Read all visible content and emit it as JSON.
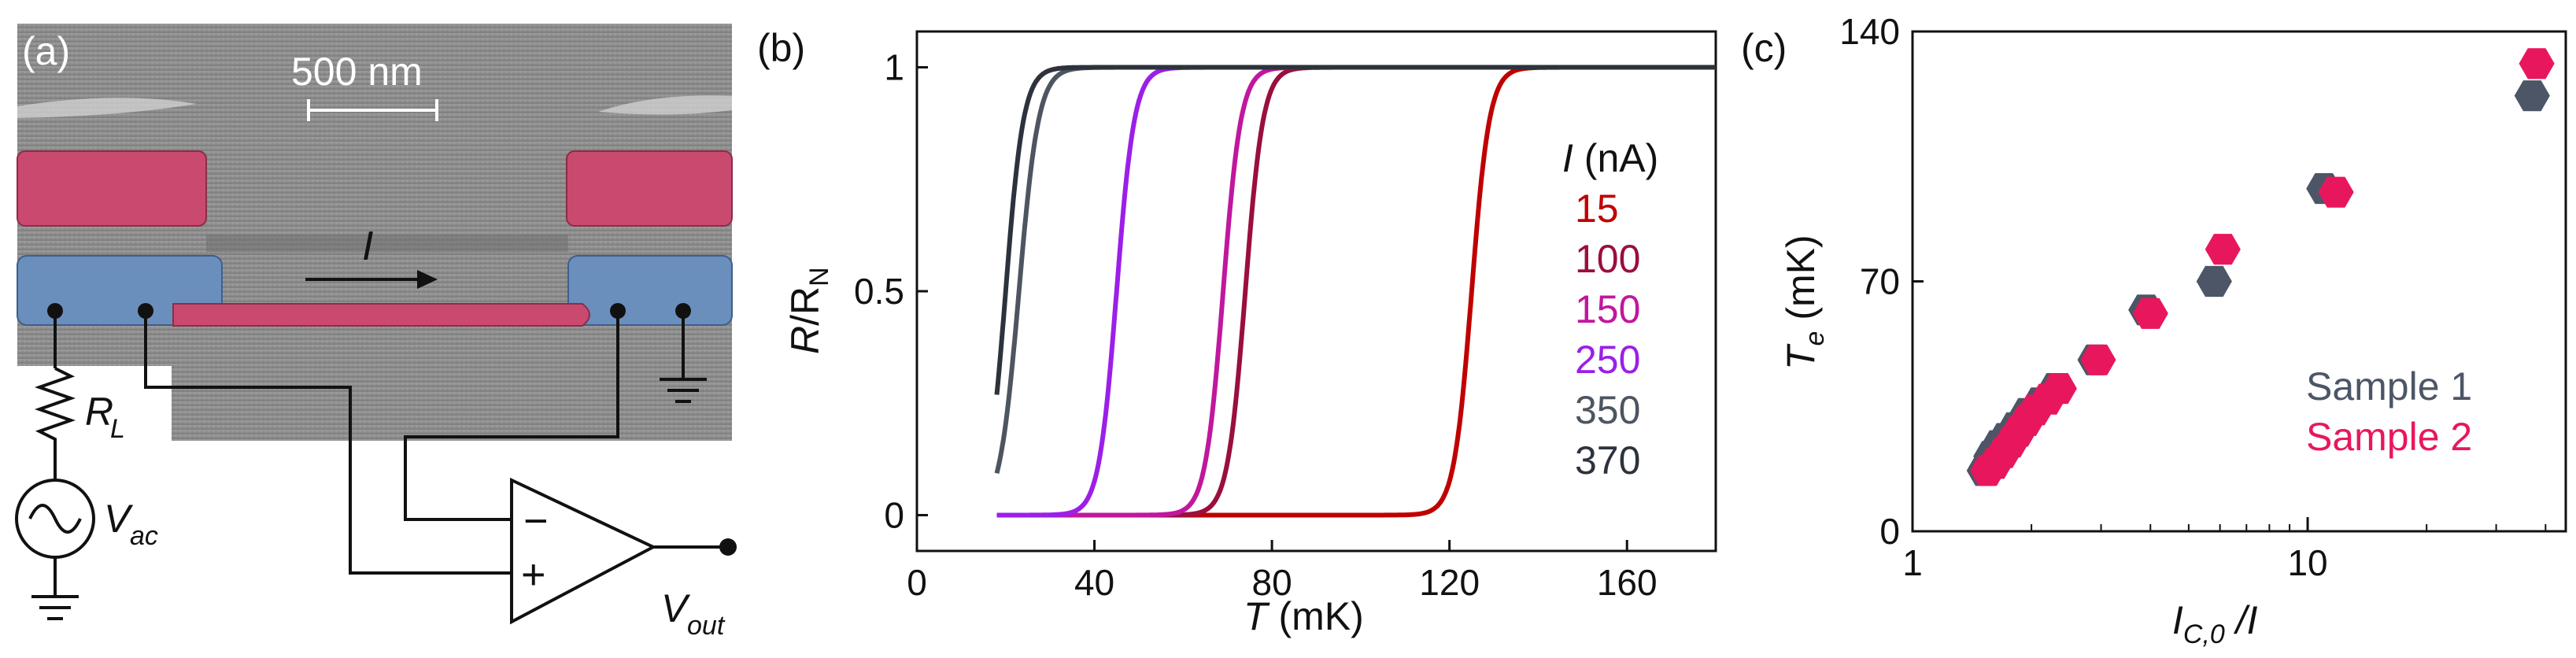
{
  "panel_a": {
    "label": "(a)",
    "scale_bar": "500 nm",
    "current_label": "I",
    "resistor_label": "R",
    "resistor_sub": "L",
    "source_label": "V",
    "source_sub": "ac",
    "output_label": "V",
    "output_sub": "out",
    "opamp_minus": "−",
    "opamp_plus": "+",
    "colors": {
      "red_lead": "#c94a6e",
      "blue_lead": "#6b8fbd",
      "substrate": "#8c8c8c"
    }
  },
  "chart_data": [
    {
      "type": "line",
      "panel": "(b)",
      "xlabel_italic": "T",
      "xlabel_rest": " (mK)",
      "ylabel_R": "R",
      "ylabel_sep": "/R",
      "ylabel_sub": "N",
      "xlim": [
        0,
        180
      ],
      "ylim": [
        -0.08,
        1.08
      ],
      "xticks": [
        0,
        40,
        80,
        120,
        160
      ],
      "yticks": [
        0,
        0.5,
        1
      ],
      "ytick_labels": [
        "0",
        "0.5",
        "1"
      ],
      "legend_title_italic": "I",
      "legend_title_rest": " (nA)",
      "series": [
        {
          "name": "15",
          "color": "#c00000",
          "tc": 125,
          "width": 2.0,
          "x_start": 18,
          "x_end": 180
        },
        {
          "name": "100",
          "color": "#9a0f3c",
          "tc": 74,
          "width": 2.0,
          "x_start": 18,
          "x_end": 180
        },
        {
          "name": "150",
          "color": "#c0179e",
          "tc": 69,
          "width": 2.0,
          "x_start": 18,
          "x_end": 180
        },
        {
          "name": "250",
          "color": "#9b1fe8",
          "tc": 45,
          "width": 2.0,
          "x_start": 18,
          "x_end": 180
        },
        {
          "name": "350",
          "color": "#4d5560",
          "tc": 23,
          "width": 2.2,
          "x_start": 18,
          "x_end": 180
        },
        {
          "name": "370",
          "color": "#2c333c",
          "tc": 20,
          "width": 2.0,
          "x_start": 18,
          "x_end": 180
        }
      ]
    },
    {
      "type": "scatter",
      "panel": "(c)",
      "xlabel_main": "I",
      "xlabel_sub": "C,0",
      "xlabel_rest": " /I",
      "ylabel_main": "T",
      "ylabel_sub": "e",
      "ylabel_rest": " (mK)",
      "xscale": "log",
      "xlim": [
        1,
        45
      ],
      "ylim": [
        0,
        140
      ],
      "xticks": [
        1,
        10
      ],
      "yticks": [
        0,
        70,
        140
      ],
      "series": [
        {
          "name": "Sample 1",
          "color": "#4d5666",
          "x": [
            1.52,
            1.58,
            1.65,
            1.72,
            1.82,
            1.95,
            2.1,
            2.3,
            2.9,
            3.9,
            5.8,
            11.0,
            37.0
          ],
          "y": [
            17,
            21,
            24,
            26,
            29,
            33,
            36,
            40,
            48,
            62,
            70,
            96,
            122
          ]
        },
        {
          "name": "Sample 2",
          "color": "#e8175d",
          "x": [
            1.55,
            1.62,
            1.7,
            1.78,
            1.86,
            1.95,
            2.05,
            2.2,
            2.35,
            2.95,
            4.0,
            6.1,
            11.8,
            38.0
          ],
          "y": [
            17,
            19,
            22,
            25,
            28,
            31,
            34,
            37,
            40,
            48,
            61,
            79,
            95,
            131
          ]
        }
      ]
    }
  ]
}
